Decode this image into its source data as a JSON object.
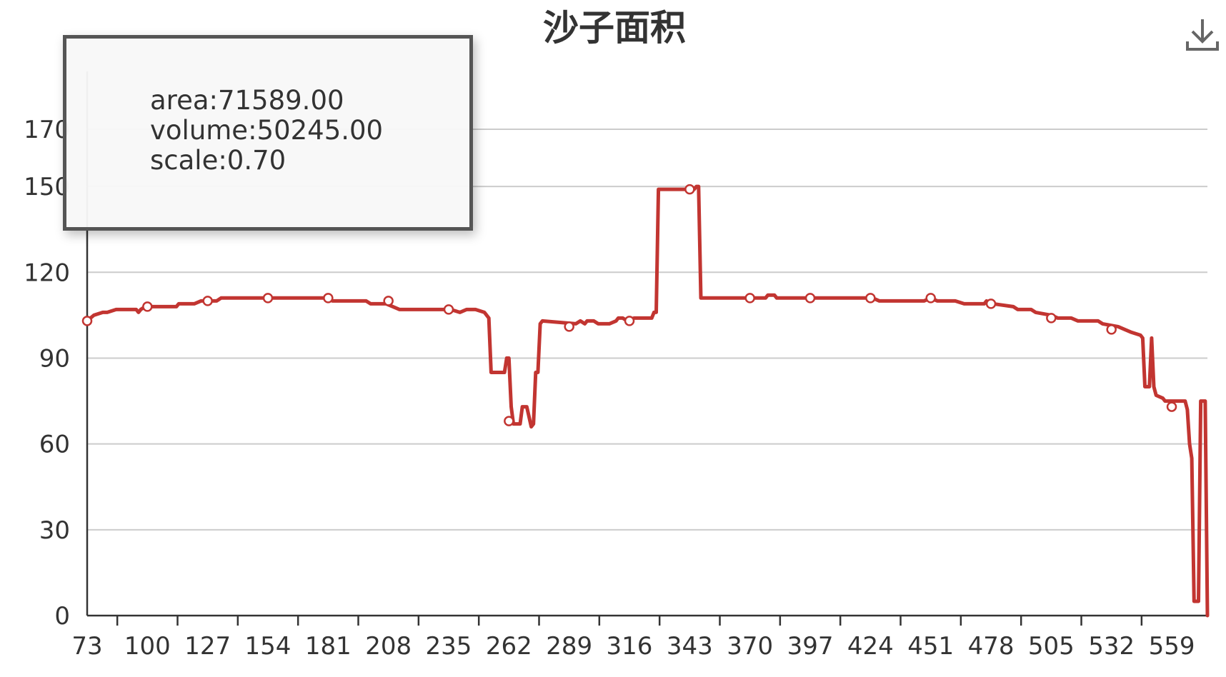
{
  "chart_data": {
    "type": "line",
    "title": "沙子面积",
    "xlabel": "",
    "ylabel": "",
    "categories": [
      "73",
      "100",
      "127",
      "154",
      "181",
      "208",
      "235",
      "262",
      "289",
      "316",
      "343",
      "370",
      "397",
      "424",
      "451",
      "478",
      "505",
      "532",
      "559"
    ],
    "x_range": [
      73,
      575
    ],
    "ylim": [
      0,
      180
    ],
    "y_ticks": [
      0,
      30,
      60,
      90,
      120,
      150,
      170
    ],
    "grid": true,
    "series": [
      {
        "color": "#c23531",
        "points": [
          [
            73,
            103
          ],
          [
            76,
            105
          ],
          [
            80,
            106
          ],
          [
            82,
            106
          ],
          [
            86,
            107
          ],
          [
            95,
            107
          ],
          [
            96,
            106
          ],
          [
            97,
            107
          ],
          [
            99,
            108
          ],
          [
            113,
            108
          ],
          [
            114,
            109
          ],
          [
            121,
            109
          ],
          [
            124,
            110
          ],
          [
            131,
            110
          ],
          [
            133,
            111
          ],
          [
            156,
            111
          ],
          [
            164,
            111
          ],
          [
            180,
            111
          ],
          [
            183,
            110
          ],
          [
            198,
            110
          ],
          [
            200,
            109
          ],
          [
            207,
            109
          ],
          [
            210,
            108
          ],
          [
            213,
            107
          ],
          [
            222,
            107
          ],
          [
            236,
            107
          ],
          [
            240,
            106
          ],
          [
            243,
            107
          ],
          [
            247,
            107
          ],
          [
            251,
            106
          ],
          [
            253,
            104
          ],
          [
            254,
            85
          ],
          [
            260,
            85
          ],
          [
            261,
            90
          ],
          [
            262,
            90
          ],
          [
            263,
            73
          ],
          [
            264,
            67
          ],
          [
            267,
            67
          ],
          [
            268,
            73
          ],
          [
            270,
            73
          ],
          [
            272,
            66
          ],
          [
            273,
            67
          ],
          [
            274,
            85
          ],
          [
            275,
            85
          ],
          [
            276,
            102
          ],
          [
            277,
            103
          ],
          [
            292,
            102
          ],
          [
            294,
            103
          ],
          [
            296,
            102
          ],
          [
            297,
            103
          ],
          [
            300,
            103
          ],
          [
            302,
            102
          ],
          [
            307,
            102
          ],
          [
            310,
            103
          ],
          [
            311,
            104
          ],
          [
            313,
            104
          ],
          [
            315,
            103
          ],
          [
            318,
            104
          ],
          [
            322,
            104
          ],
          [
            326,
            104
          ],
          [
            327,
            106
          ],
          [
            328,
            106
          ],
          [
            329,
            149
          ],
          [
            345,
            149
          ],
          [
            346,
            150
          ],
          [
            347,
            150
          ],
          [
            348,
            111
          ],
          [
            352,
            111
          ],
          [
            370,
            111
          ],
          [
            377,
            111
          ],
          [
            378,
            112
          ],
          [
            381,
            112
          ],
          [
            382,
            111
          ],
          [
            388,
            111
          ],
          [
            390,
            111
          ],
          [
            392,
            111
          ],
          [
            410,
            111
          ],
          [
            425,
            111
          ],
          [
            428,
            110
          ],
          [
            448,
            110
          ],
          [
            451,
            111
          ],
          [
            454,
            110
          ],
          [
            459,
            110
          ],
          [
            462,
            110
          ],
          [
            466,
            109
          ],
          [
            470,
            109
          ],
          [
            475,
            109
          ],
          [
            476,
            110
          ],
          [
            479,
            109
          ],
          [
            488,
            108
          ],
          [
            490,
            107
          ],
          [
            496,
            107
          ],
          [
            498,
            106
          ],
          [
            505,
            105
          ],
          [
            508,
            104
          ],
          [
            514,
            104
          ],
          [
            517,
            103
          ],
          [
            526,
            103
          ],
          [
            528,
            102
          ],
          [
            535,
            101
          ],
          [
            538,
            100
          ],
          [
            541,
            99
          ],
          [
            545,
            98
          ],
          [
            546,
            97
          ],
          [
            547,
            80
          ],
          [
            549,
            80
          ],
          [
            550,
            97
          ],
          [
            551,
            80
          ],
          [
            552,
            77
          ],
          [
            555,
            76
          ],
          [
            556,
            75
          ],
          [
            565,
            75
          ],
          [
            566,
            72
          ],
          [
            567,
            60
          ],
          [
            568,
            55
          ],
          [
            569,
            5
          ],
          [
            571,
            5
          ],
          [
            572,
            75
          ],
          [
            574,
            75
          ],
          [
            575,
            0
          ]
        ],
        "markers": [
          [
            73,
            103
          ],
          [
            100,
            108
          ],
          [
            127,
            110
          ],
          [
            154,
            111
          ],
          [
            181,
            111
          ],
          [
            208,
            110
          ],
          [
            235,
            107
          ],
          [
            262,
            68
          ],
          [
            289,
            101
          ],
          [
            316,
            103
          ],
          [
            343,
            149
          ],
          [
            370,
            111
          ],
          [
            397,
            111
          ],
          [
            424,
            111
          ],
          [
            451,
            111
          ],
          [
            478,
            109
          ],
          [
            505,
            104
          ],
          [
            532,
            100
          ],
          [
            559,
            73
          ]
        ]
      }
    ]
  },
  "tooltip": {
    "area": "area:71589.00",
    "volume": "volume:50245.00",
    "scale": "scale:0.70"
  },
  "toolbox": {
    "download_icon": "download-icon"
  }
}
